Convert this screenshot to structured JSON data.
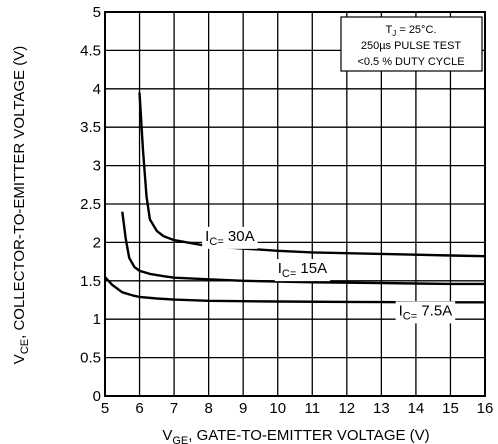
{
  "chart_data": {
    "type": "line",
    "xlabel": {
      "main": "V",
      "sub": "GE",
      "rest": ", GATE-TO-EMITTER VOLTAGE (V)"
    },
    "ylabel": {
      "main": "V",
      "sub": "CE",
      "rest": ", COLLECTOR-TO-EMITTER VOLTAGE (V)"
    },
    "xlim": [
      5,
      16
    ],
    "ylim": [
      0,
      5
    ],
    "x_ticks": [
      5,
      6,
      7,
      8,
      9,
      10,
      11,
      12,
      13,
      14,
      15,
      16
    ],
    "y_ticks": [
      0,
      0.5,
      1,
      1.5,
      2,
      2.5,
      3,
      3.5,
      4,
      4.5,
      5
    ],
    "x_tick_labels": [
      "5",
      "6",
      "7",
      "8",
      "9",
      "10",
      "11",
      "12",
      "13",
      "14",
      "15",
      "16"
    ],
    "y_tick_labels": [
      "0",
      "0.5",
      "1",
      "1.5",
      "2",
      "2.5",
      "3",
      "3.5",
      "4",
      "4.5",
      "5"
    ],
    "grid": true,
    "annotation": {
      "line1_pre": "T",
      "line1_sub": "J",
      "line1_post": " = 25°C.",
      "line2": "250µs PULSE TEST",
      "line3": "<0.5 % DUTY CYCLE"
    },
    "series": [
      {
        "label_pre": "I",
        "label_sub": "C=",
        "label_post": " 30A",
        "label_x": 7.9,
        "label_y": 2.02,
        "points": [
          [
            6.0,
            3.95
          ],
          [
            6.1,
            3.2
          ],
          [
            6.2,
            2.6
          ],
          [
            6.3,
            2.3
          ],
          [
            6.5,
            2.15
          ],
          [
            6.7,
            2.08
          ],
          [
            7.0,
            2.03
          ],
          [
            7.5,
            1.99
          ],
          [
            8.0,
            1.95
          ],
          [
            9.0,
            1.92
          ],
          [
            10.0,
            1.89
          ],
          [
            11.0,
            1.87
          ],
          [
            12.0,
            1.86
          ],
          [
            13.0,
            1.85
          ],
          [
            14.0,
            1.84
          ],
          [
            15.0,
            1.83
          ],
          [
            16.0,
            1.82
          ]
        ]
      },
      {
        "label_pre": "I",
        "label_sub": "C=",
        "label_post": " 15A",
        "label_x": 10.0,
        "label_y": 1.6,
        "points": [
          [
            5.5,
            2.4
          ],
          [
            5.6,
            2.05
          ],
          [
            5.7,
            1.8
          ],
          [
            5.85,
            1.68
          ],
          [
            6.0,
            1.63
          ],
          [
            6.3,
            1.59
          ],
          [
            6.7,
            1.56
          ],
          [
            7.0,
            1.54
          ],
          [
            8.0,
            1.52
          ],
          [
            9.0,
            1.5
          ],
          [
            10.0,
            1.49
          ],
          [
            11.0,
            1.48
          ],
          [
            12.0,
            1.475
          ],
          [
            13.0,
            1.47
          ],
          [
            14.0,
            1.465
          ],
          [
            15.0,
            1.46
          ],
          [
            16.0,
            1.46
          ]
        ]
      },
      {
        "label_pre": "I",
        "label_sub": "C=",
        "label_post": " 7.5A",
        "label_x": 13.5,
        "label_y": 1.05,
        "points": [
          [
            5.0,
            1.55
          ],
          [
            5.2,
            1.45
          ],
          [
            5.5,
            1.35
          ],
          [
            5.8,
            1.31
          ],
          [
            6.0,
            1.29
          ],
          [
            6.5,
            1.27
          ],
          [
            7.0,
            1.255
          ],
          [
            8.0,
            1.24
          ],
          [
            9.0,
            1.235
          ],
          [
            10.0,
            1.23
          ],
          [
            12.0,
            1.225
          ],
          [
            14.0,
            1.22
          ],
          [
            16.0,
            1.22
          ]
        ]
      }
    ]
  }
}
